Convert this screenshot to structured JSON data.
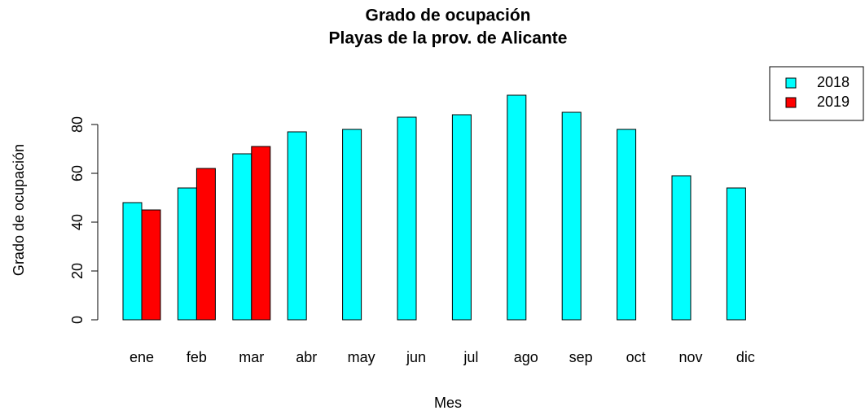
{
  "chart_data": {
    "type": "bar",
    "title": "Grado de ocupación",
    "subtitle": "Playas de la prov. de Alicante",
    "x_label": "Mes",
    "y_label": "Grado de ocupación",
    "categories": [
      "ene",
      "feb",
      "mar",
      "abr",
      "may",
      "jun",
      "jul",
      "ago",
      "sep",
      "oct",
      "nov",
      "dic"
    ],
    "series": [
      {
        "name": "2018",
        "color": "#00ffff",
        "values": [
          48,
          54,
          68,
          77,
          78,
          83,
          84,
          92,
          85,
          78,
          59,
          54
        ]
      },
      {
        "name": "2019",
        "color": "#ff0000",
        "values": [
          45,
          62,
          71,
          null,
          null,
          null,
          null,
          null,
          null,
          null,
          null,
          null
        ]
      }
    ],
    "ylim": [
      0,
      96
    ],
    "yticks": [
      0,
      20,
      40,
      60,
      80
    ],
    "legend_position": "topright"
  }
}
